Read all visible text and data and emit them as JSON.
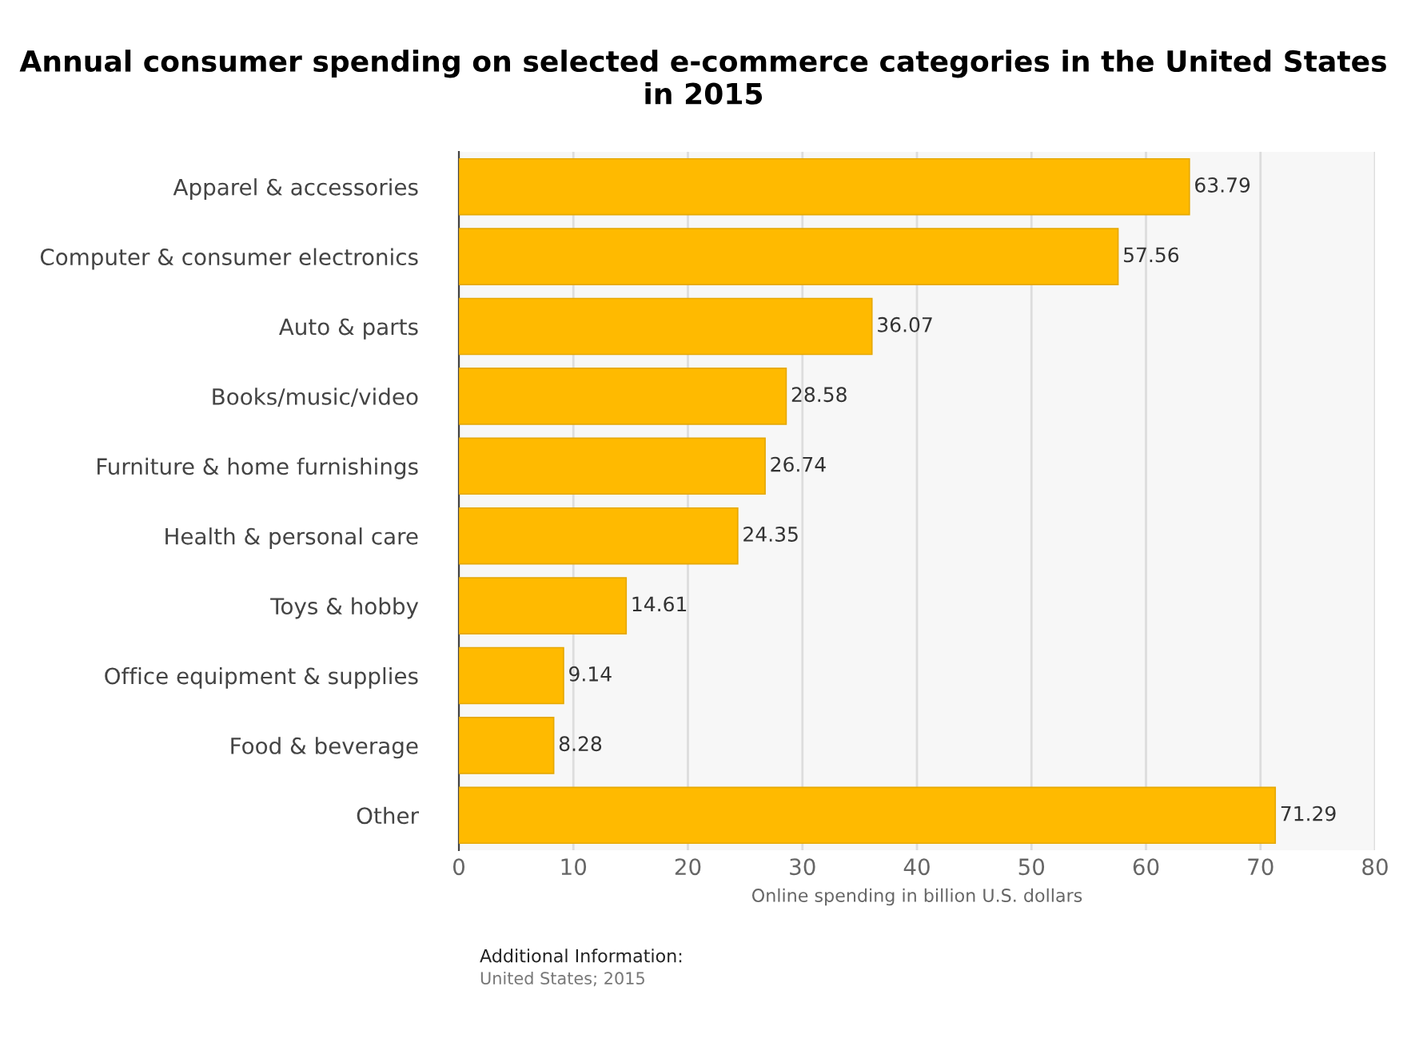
{
  "chart_data": {
    "type": "bar",
    "orientation": "horizontal",
    "title": "Annual consumer spending on selected e-commerce categories in the United States in 2015",
    "categories": [
      "Apparel & accessories",
      "Computer & consumer electronics",
      "Auto & parts",
      "Books/music/video",
      "Furniture & home furnishings",
      "Health & personal care",
      "Toys & hobby",
      "Office equipment & supplies",
      "Food & beverage",
      "Other"
    ],
    "values": [
      63.79,
      57.56,
      36.07,
      28.58,
      26.74,
      24.35,
      14.61,
      9.14,
      8.28,
      71.29
    ],
    "color": "#ffba00",
    "xlabel": "Online spending in billion U.S. dollars",
    "xlim": [
      0,
      80
    ],
    "xticks": [
      0,
      10,
      20,
      30,
      40,
      50,
      60,
      70,
      80
    ],
    "grid": "x",
    "data_labels": true,
    "annotations": [
      "Additional Information:",
      "United States; 2015"
    ]
  }
}
